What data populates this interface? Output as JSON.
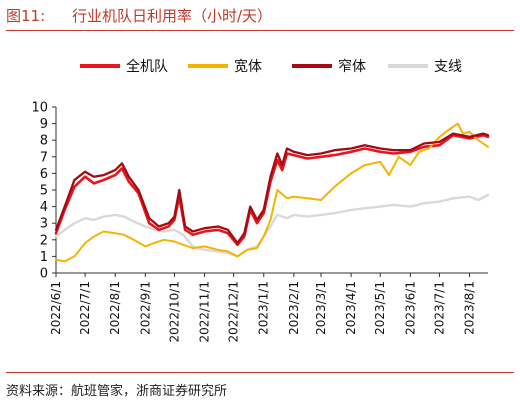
{
  "header": {
    "figure_label": "图11:",
    "title": "行业机队日利用率（小时/天）"
  },
  "footer": {
    "source": "资料来源：航班管家，浙商证券研究所"
  },
  "chart_data": {
    "type": "line",
    "title": "行业机队日利用率（小时/天）",
    "xlabel": "",
    "ylabel": "",
    "ylim": [
      0,
      10
    ],
    "yticks": [
      "0",
      "1",
      "2",
      "3",
      "4",
      "5",
      "6",
      "7",
      "8",
      "9",
      "10"
    ],
    "x_tick_labels": [
      "2022/6/1",
      "2022/7/1",
      "2022/8/1",
      "2022/9/1",
      "2022/10/1",
      "2022/11/1",
      "2022/12/1",
      "2023/1/1",
      "2023/2/1",
      "2023/3/1",
      "2023/4/1",
      "2023/5/1",
      "2023/6/1",
      "2023/7/1",
      "2023/8/1"
    ],
    "x_start": "2022-06-01",
    "x_end": "2023-08-20",
    "grid": false,
    "legend_position": "top",
    "series": [
      {
        "name": "全机队",
        "color": "#e8161b",
        "width": 2.6,
        "points": [
          [
            "2022-06-01",
            2.4
          ],
          [
            "2022-06-10",
            3.8
          ],
          [
            "2022-06-20",
            5.2
          ],
          [
            "2022-07-01",
            5.8
          ],
          [
            "2022-07-10",
            5.4
          ],
          [
            "2022-07-20",
            5.6
          ],
          [
            "2022-08-01",
            5.9
          ],
          [
            "2022-08-08",
            6.3
          ],
          [
            "2022-08-15",
            5.5
          ],
          [
            "2022-08-25",
            4.8
          ],
          [
            "2022-09-05",
            3.0
          ],
          [
            "2022-09-15",
            2.6
          ],
          [
            "2022-09-25",
            2.8
          ],
          [
            "2022-10-01",
            3.2
          ],
          [
            "2022-10-06",
            4.6
          ],
          [
            "2022-10-12",
            2.6
          ],
          [
            "2022-10-20",
            2.3
          ],
          [
            "2022-11-01",
            2.5
          ],
          [
            "2022-11-15",
            2.6
          ],
          [
            "2022-11-25",
            2.4
          ],
          [
            "2022-12-05",
            1.7
          ],
          [
            "2022-12-12",
            2.2
          ],
          [
            "2022-12-18",
            3.8
          ],
          [
            "2022-12-25",
            3.0
          ],
          [
            "2023-01-01",
            3.6
          ],
          [
            "2023-01-08",
            5.5
          ],
          [
            "2023-01-15",
            6.8
          ],
          [
            "2023-01-20",
            6.2
          ],
          [
            "2023-01-25",
            7.2
          ],
          [
            "2023-02-01",
            7.1
          ],
          [
            "2023-02-15",
            6.9
          ],
          [
            "2023-03-01",
            7.0
          ],
          [
            "2023-03-15",
            7.1
          ],
          [
            "2023-04-01",
            7.3
          ],
          [
            "2023-04-15",
            7.5
          ],
          [
            "2023-05-01",
            7.3
          ],
          [
            "2023-05-15",
            7.2
          ],
          [
            "2023-06-01",
            7.3
          ],
          [
            "2023-06-15",
            7.6
          ],
          [
            "2023-07-01",
            7.7
          ],
          [
            "2023-07-15",
            8.3
          ],
          [
            "2023-08-01",
            8.1
          ],
          [
            "2023-08-15",
            8.3
          ],
          [
            "2023-08-20",
            8.2
          ]
        ]
      },
      {
        "name": "宽体",
        "color": "#f4b400",
        "width": 2.0,
        "points": [
          [
            "2022-06-01",
            0.8
          ],
          [
            "2022-06-10",
            0.7
          ],
          [
            "2022-06-20",
            1.0
          ],
          [
            "2022-07-01",
            1.8
          ],
          [
            "2022-07-10",
            2.2
          ],
          [
            "2022-07-20",
            2.5
          ],
          [
            "2022-08-01",
            2.4
          ],
          [
            "2022-08-10",
            2.3
          ],
          [
            "2022-08-20",
            2.0
          ],
          [
            "2022-09-01",
            1.6
          ],
          [
            "2022-09-10",
            1.8
          ],
          [
            "2022-09-20",
            2.0
          ],
          [
            "2022-10-01",
            1.9
          ],
          [
            "2022-10-10",
            1.7
          ],
          [
            "2022-10-20",
            1.5
          ],
          [
            "2022-11-01",
            1.6
          ],
          [
            "2022-11-15",
            1.4
          ],
          [
            "2022-11-25",
            1.3
          ],
          [
            "2022-12-05",
            1.0
          ],
          [
            "2022-12-15",
            1.4
          ],
          [
            "2022-12-25",
            1.5
          ],
          [
            "2023-01-01",
            2.2
          ],
          [
            "2023-01-08",
            3.2
          ],
          [
            "2023-01-15",
            5.0
          ],
          [
            "2023-01-25",
            4.5
          ],
          [
            "2023-02-01",
            4.6
          ],
          [
            "2023-02-15",
            4.5
          ],
          [
            "2023-03-01",
            4.4
          ],
          [
            "2023-03-15",
            5.2
          ],
          [
            "2023-04-01",
            6.0
          ],
          [
            "2023-04-15",
            6.5
          ],
          [
            "2023-05-01",
            6.7
          ],
          [
            "2023-05-10",
            5.9
          ],
          [
            "2023-05-20",
            7.0
          ],
          [
            "2023-06-01",
            6.5
          ],
          [
            "2023-06-10",
            7.3
          ],
          [
            "2023-06-20",
            7.5
          ],
          [
            "2023-07-01",
            8.2
          ],
          [
            "2023-07-10",
            8.6
          ],
          [
            "2023-07-20",
            9.0
          ],
          [
            "2023-07-25",
            8.4
          ],
          [
            "2023-08-01",
            8.5
          ],
          [
            "2023-08-10",
            8.0
          ],
          [
            "2023-08-20",
            7.6
          ]
        ]
      },
      {
        "name": "窄体",
        "color": "#a50a14",
        "width": 2.3,
        "points": [
          [
            "2022-06-01",
            2.6
          ],
          [
            "2022-06-10",
            4.0
          ],
          [
            "2022-06-20",
            5.6
          ],
          [
            "2022-07-01",
            6.1
          ],
          [
            "2022-07-10",
            5.8
          ],
          [
            "2022-07-20",
            5.9
          ],
          [
            "2022-08-01",
            6.2
          ],
          [
            "2022-08-08",
            6.6
          ],
          [
            "2022-08-15",
            5.8
          ],
          [
            "2022-08-25",
            5.0
          ],
          [
            "2022-09-05",
            3.3
          ],
          [
            "2022-09-15",
            2.8
          ],
          [
            "2022-09-25",
            3.0
          ],
          [
            "2022-10-01",
            3.4
          ],
          [
            "2022-10-06",
            5.0
          ],
          [
            "2022-10-12",
            2.8
          ],
          [
            "2022-10-20",
            2.5
          ],
          [
            "2022-11-01",
            2.7
          ],
          [
            "2022-11-15",
            2.8
          ],
          [
            "2022-11-25",
            2.6
          ],
          [
            "2022-12-05",
            1.8
          ],
          [
            "2022-12-12",
            2.4
          ],
          [
            "2022-12-18",
            4.0
          ],
          [
            "2022-12-25",
            3.2
          ],
          [
            "2023-01-01",
            3.8
          ],
          [
            "2023-01-08",
            5.8
          ],
          [
            "2023-01-15",
            7.2
          ],
          [
            "2023-01-20",
            6.5
          ],
          [
            "2023-01-25",
            7.5
          ],
          [
            "2023-02-01",
            7.3
          ],
          [
            "2023-02-15",
            7.1
          ],
          [
            "2023-03-01",
            7.2
          ],
          [
            "2023-03-15",
            7.4
          ],
          [
            "2023-04-01",
            7.5
          ],
          [
            "2023-04-15",
            7.7
          ],
          [
            "2023-05-01",
            7.5
          ],
          [
            "2023-05-15",
            7.4
          ],
          [
            "2023-06-01",
            7.4
          ],
          [
            "2023-06-15",
            7.8
          ],
          [
            "2023-07-01",
            7.9
          ],
          [
            "2023-07-15",
            8.4
          ],
          [
            "2023-08-01",
            8.2
          ],
          [
            "2023-08-15",
            8.4
          ],
          [
            "2023-08-20",
            8.3
          ]
        ]
      },
      {
        "name": "支线",
        "color": "#d9d9d9",
        "width": 2.4,
        "points": [
          [
            "2022-06-01",
            2.2
          ],
          [
            "2022-06-10",
            2.6
          ],
          [
            "2022-06-20",
            3.0
          ],
          [
            "2022-07-01",
            3.3
          ],
          [
            "2022-07-10",
            3.2
          ],
          [
            "2022-07-20",
            3.4
          ],
          [
            "2022-08-01",
            3.5
          ],
          [
            "2022-08-10",
            3.4
          ],
          [
            "2022-08-20",
            3.1
          ],
          [
            "2022-09-01",
            2.8
          ],
          [
            "2022-09-10",
            2.6
          ],
          [
            "2022-09-20",
            2.5
          ],
          [
            "2022-10-01",
            2.6
          ],
          [
            "2022-10-10",
            2.3
          ],
          [
            "2022-10-20",
            1.6
          ],
          [
            "2022-11-01",
            1.4
          ],
          [
            "2022-11-15",
            1.3
          ],
          [
            "2022-11-25",
            1.2
          ],
          [
            "2022-12-05",
            1.0
          ],
          [
            "2022-12-15",
            1.4
          ],
          [
            "2022-12-25",
            1.6
          ],
          [
            "2023-01-01",
            2.2
          ],
          [
            "2023-01-08",
            2.8
          ],
          [
            "2023-01-15",
            3.5
          ],
          [
            "2023-01-25",
            3.3
          ],
          [
            "2023-02-01",
            3.5
          ],
          [
            "2023-02-15",
            3.4
          ],
          [
            "2023-03-01",
            3.5
          ],
          [
            "2023-03-15",
            3.6
          ],
          [
            "2023-04-01",
            3.8
          ],
          [
            "2023-04-15",
            3.9
          ],
          [
            "2023-05-01",
            4.0
          ],
          [
            "2023-05-15",
            4.1
          ],
          [
            "2023-06-01",
            4.0
          ],
          [
            "2023-06-15",
            4.2
          ],
          [
            "2023-07-01",
            4.3
          ],
          [
            "2023-07-15",
            4.5
          ],
          [
            "2023-08-01",
            4.6
          ],
          [
            "2023-08-10",
            4.4
          ],
          [
            "2023-08-20",
            4.7
          ]
        ]
      }
    ]
  }
}
